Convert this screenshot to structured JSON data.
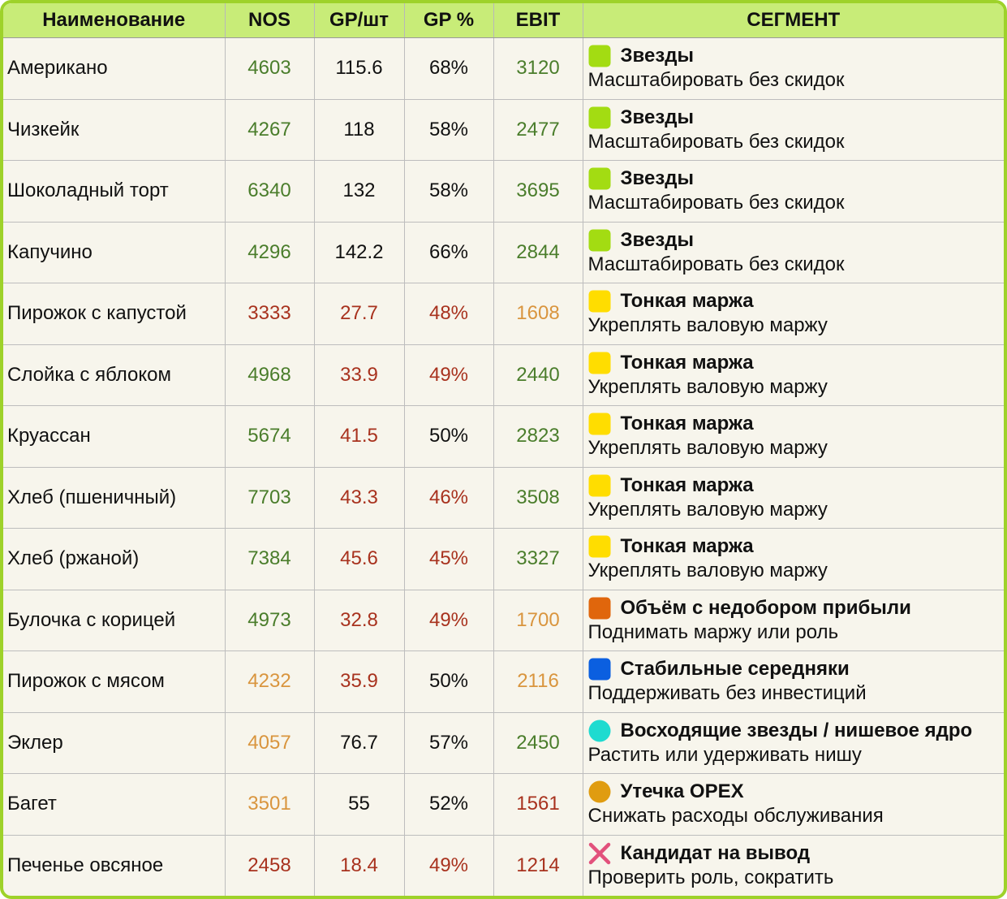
{
  "table": {
    "header": [
      "Наименование",
      "NOS",
      "GP/шт",
      "GP %",
      "EBIT",
      "СЕГМЕНТ"
    ],
    "rows": [
      {
        "cells": [
          "Американо",
          "4603",
          "115.6",
          "68%",
          "3120"
        ],
        "colors": [
          "#111111",
          "#4a7d2b",
          "#111111",
          "#111111",
          "#4a7d2b"
        ],
        "segment": {
          "title": "Звезды",
          "action": "Масштабировать без скидок",
          "icon": "square",
          "icon_color": "#a3dc12"
        }
      },
      {
        "cells": [
          "Чизкейк",
          "4267",
          "118",
          "58%",
          "2477"
        ],
        "colors": [
          "#111111",
          "#4a7d2b",
          "#111111",
          "#111111",
          "#4a7d2b"
        ],
        "segment": {
          "title": "Звезды",
          "action": "Масштабировать без скидок",
          "icon": "square",
          "icon_color": "#a3dc12"
        }
      },
      {
        "cells": [
          "Шоколадный торт",
          "6340",
          "132",
          "58%",
          "3695"
        ],
        "colors": [
          "#111111",
          "#4a7d2b",
          "#111111",
          "#111111",
          "#4a7d2b"
        ],
        "segment": {
          "title": "Звезды",
          "action": "Масштабировать без скидок",
          "icon": "square",
          "icon_color": "#a3dc12"
        }
      },
      {
        "cells": [
          "Капучино",
          "4296",
          "142.2",
          "66%",
          "2844"
        ],
        "colors": [
          "#111111",
          "#4a7d2b",
          "#111111",
          "#111111",
          "#4a7d2b"
        ],
        "segment": {
          "title": "Звезды",
          "action": "Масштабировать без скидок",
          "icon": "square",
          "icon_color": "#a3dc12"
        }
      },
      {
        "cells": [
          "Пирожок с капустой",
          "3333",
          "27.7",
          "48%",
          "1608"
        ],
        "colors": [
          "#111111",
          "#a8321e",
          "#a8321e",
          "#a8321e",
          "#d9953e"
        ],
        "segment": {
          "title": "Тонкая маржа",
          "action": "Укреплять валовую маржу",
          "icon": "square",
          "icon_color": "#ffdd00"
        }
      },
      {
        "cells": [
          "Слойка с яблоком",
          "4968",
          "33.9",
          "49%",
          "2440"
        ],
        "colors": [
          "#111111",
          "#4a7d2b",
          "#a8321e",
          "#a8321e",
          "#4a7d2b"
        ],
        "segment": {
          "title": "Тонкая маржа",
          "action": "Укреплять валовую маржу",
          "icon": "square",
          "icon_color": "#ffdd00"
        }
      },
      {
        "cells": [
          "Круассан",
          "5674",
          "41.5",
          "50%",
          "2823"
        ],
        "colors": [
          "#111111",
          "#4a7d2b",
          "#a8321e",
          "#111111",
          "#4a7d2b"
        ],
        "segment": {
          "title": "Тонкая маржа",
          "action": "Укреплять валовую маржу",
          "icon": "square",
          "icon_color": "#ffdd00"
        }
      },
      {
        "cells": [
          "Хлеб (пшеничный)",
          "7703",
          "43.3",
          "46%",
          "3508"
        ],
        "colors": [
          "#111111",
          "#4a7d2b",
          "#a8321e",
          "#a8321e",
          "#4a7d2b"
        ],
        "segment": {
          "title": "Тонкая маржа",
          "action": "Укреплять валовую маржу",
          "icon": "square",
          "icon_color": "#ffdd00"
        }
      },
      {
        "cells": [
          "Хлеб (ржаной)",
          "7384",
          "45.6",
          "45%",
          "3327"
        ],
        "colors": [
          "#111111",
          "#4a7d2b",
          "#a8321e",
          "#a8321e",
          "#4a7d2b"
        ],
        "segment": {
          "title": "Тонкая маржа",
          "action": "Укреплять валовую маржу",
          "icon": "square",
          "icon_color": "#ffdd00"
        }
      },
      {
        "cells": [
          "Булочка с корицей",
          "4973",
          "32.8",
          "49%",
          "1700"
        ],
        "colors": [
          "#111111",
          "#4a7d2b",
          "#a8321e",
          "#a8321e",
          "#d9953e"
        ],
        "segment": {
          "title": "Объём с недобором прибыли",
          "action": "Поднимать маржу или роль",
          "icon": "square",
          "icon_color": "#e0660c"
        }
      },
      {
        "cells": [
          "Пирожок с мясом",
          "4232",
          "35.9",
          "50%",
          "2116"
        ],
        "colors": [
          "#111111",
          "#d9953e",
          "#a8321e",
          "#111111",
          "#d9953e"
        ],
        "segment": {
          "title": "Стабильные середняки",
          "action": "Поддерживать без инвестиций",
          "icon": "square",
          "icon_color": "#0b5fe0"
        }
      },
      {
        "cells": [
          "Эклер",
          "4057",
          "76.7",
          "57%",
          "2450"
        ],
        "colors": [
          "#111111",
          "#d9953e",
          "#111111",
          "#111111",
          "#4a7d2b"
        ],
        "segment": {
          "title": "Восходящие звезды / нишевое ядро",
          "action": "Растить или удерживать нишу",
          "icon": "circle",
          "icon_color": "#1edbd0"
        }
      },
      {
        "cells": [
          "Багет",
          "3501",
          "55",
          "52%",
          "1561"
        ],
        "colors": [
          "#111111",
          "#d9953e",
          "#111111",
          "#111111",
          "#a8321e"
        ],
        "segment": {
          "title": "Утечка OPEX",
          "action": "Снижать расходы обслуживания",
          "icon": "circle",
          "icon_color": "#e09c10"
        }
      },
      {
        "cells": [
          "Печенье овсяное",
          "2458",
          "18.4",
          "49%",
          "1214"
        ],
        "colors": [
          "#111111",
          "#a8321e",
          "#a8321e",
          "#a8321e",
          "#a8321e"
        ],
        "segment": {
          "title": "Кандидат на вывод",
          "action": "Проверить роль, сократить",
          "icon": "cross",
          "icon_color": "#e2517c"
        }
      }
    ]
  }
}
